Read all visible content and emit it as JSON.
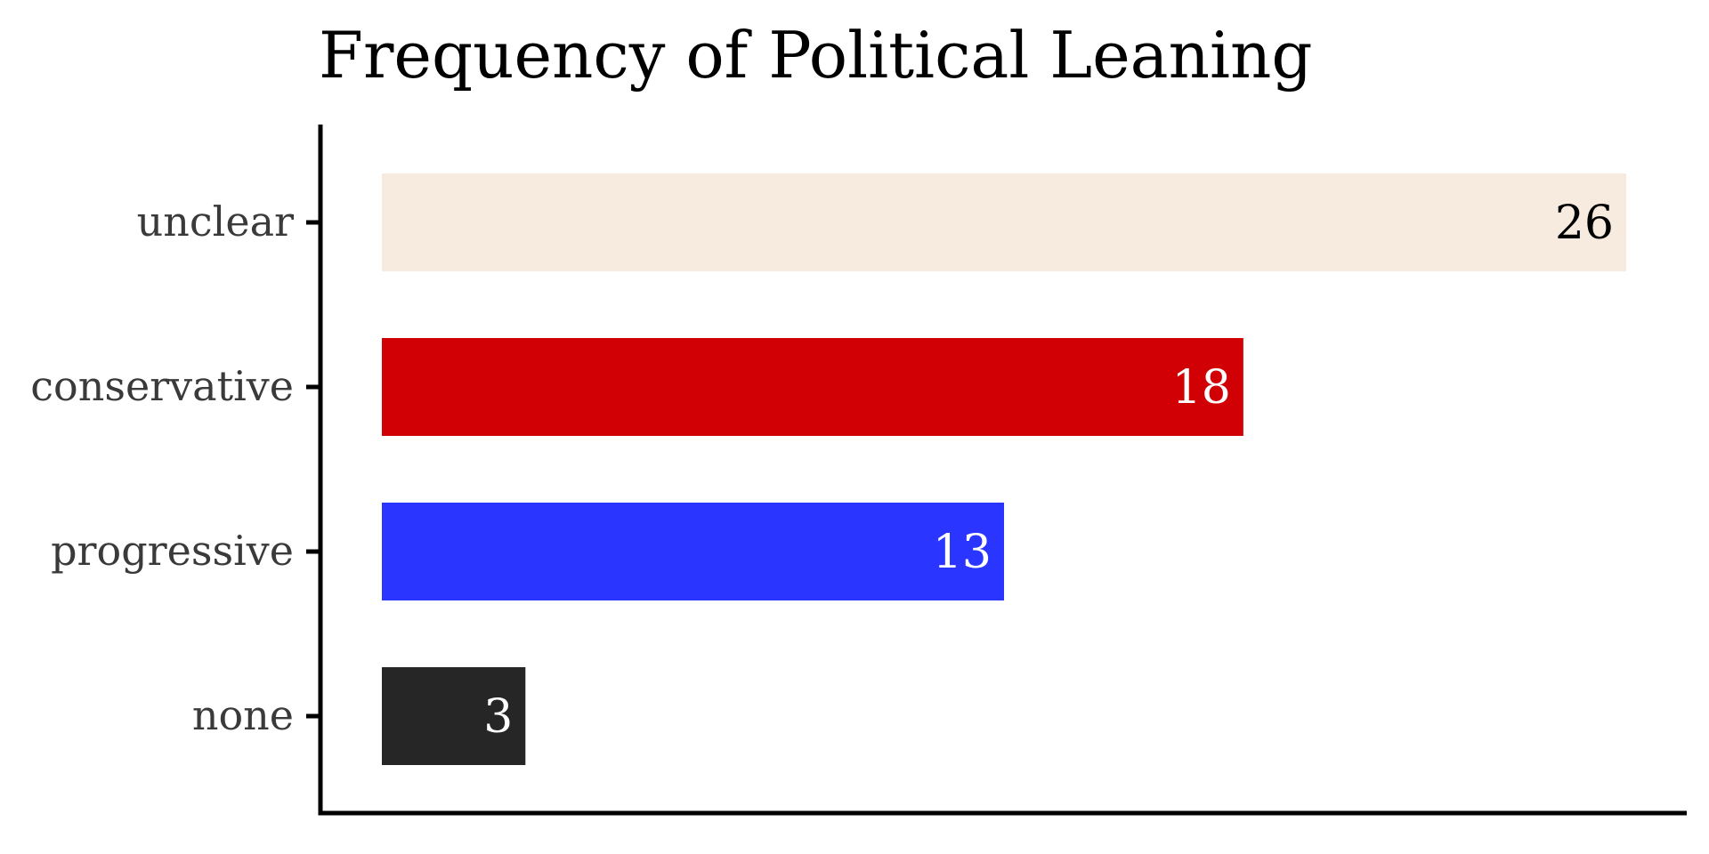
{
  "chart_data": {
    "type": "bar",
    "orientation": "horizontal",
    "title": "Frequency of Political Leaning",
    "xlabel": "",
    "ylabel": "",
    "categories": [
      "unclear",
      "conservative",
      "progressive",
      "none"
    ],
    "values": [
      26,
      18,
      13,
      3
    ],
    "xlim": [
      0,
      27.4
    ],
    "colors": [
      "#f7ebe0",
      "#d00005",
      "#2a35ff",
      "#262626"
    ],
    "label_colors": [
      "#000000",
      "#ffffff",
      "#ffffff",
      "#ffffff"
    ],
    "axis_color": "#000000",
    "tick_label_color": "#3a3a3a",
    "grid": false,
    "legend": "none"
  }
}
